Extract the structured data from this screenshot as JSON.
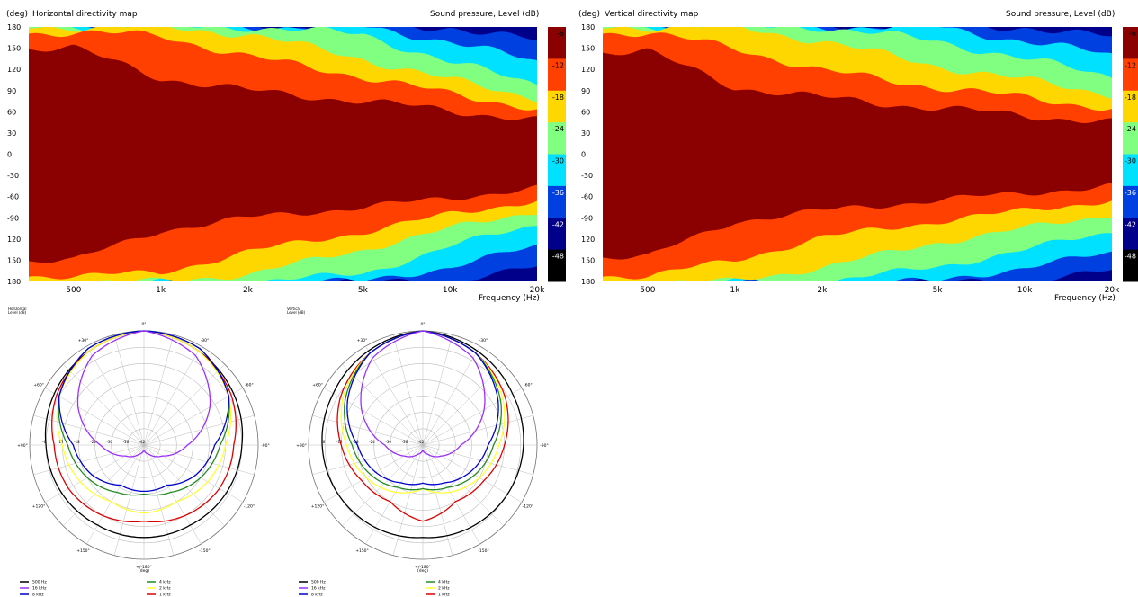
{
  "colors": {
    "levels": [
      "#8b0000",
      "#ff4000",
      "#ffd700",
      "#80ff80",
      "#00e0ff",
      "#0040e0",
      "#00008b",
      "#000000"
    ],
    "polar_series": [
      "#000000",
      "#9b30ff",
      "#0000cc",
      "#228b22",
      "#ffff33",
      "#dd0000"
    ],
    "grid": "#bdbdbd"
  },
  "maps": [
    {
      "ylabel": "(deg)",
      "title": "Horizontal directivity map",
      "cbar_label": "Sound pressure, Level  (dB)",
      "xlabel": "Frequency  (Hz)",
      "xticks": [
        "500",
        "1k",
        "2k",
        "5k",
        "10k",
        "20k"
      ],
      "yticks": [
        "180",
        "150",
        "120",
        "90",
        "60",
        "30",
        "0",
        "-30",
        "-60",
        "-90",
        "120",
        "150",
        "180"
      ],
      "cbar_ticks": [
        "-6",
        "-12",
        "-18",
        "-24",
        "-30",
        "-36",
        "-42",
        "-48"
      ],
      "dev_top": [
        [
          0,
          0
        ],
        [
          6,
          -2
        ],
        [
          18,
          -1
        ],
        [
          40,
          2
        ],
        [
          80,
          4
        ],
        [
          120,
          5
        ],
        [
          170,
          6
        ],
        [
          220,
          8
        ],
        [
          260,
          7
        ],
        [
          300,
          9
        ],
        [
          350,
          12
        ],
        [
          400,
          11
        ],
        [
          440,
          14
        ],
        [
          480,
          16
        ],
        [
          520,
          18
        ],
        [
          565,
          20
        ]
      ],
      "dev_bot": [
        [
          0,
          0
        ],
        [
          6,
          2
        ],
        [
          18,
          3
        ],
        [
          40,
          4
        ],
        [
          80,
          5
        ],
        [
          120,
          6
        ],
        [
          170,
          7
        ],
        [
          220,
          8
        ],
        [
          260,
          9
        ],
        [
          300,
          10
        ],
        [
          350,
          11
        ],
        [
          400,
          12
        ],
        [
          440,
          14
        ],
        [
          480,
          16
        ],
        [
          520,
          18
        ],
        [
          565,
          19
        ]
      ]
    },
    {
      "ylabel": "(deg)",
      "title": "Vertical directivity map",
      "cbar_label": "Sound pressure, Level  (dB)",
      "xlabel": "Frequency  (Hz)",
      "xticks": [
        "500",
        "1k",
        "2k",
        "5k",
        "10k",
        "20k"
      ],
      "yticks": [
        "180",
        "150",
        "120",
        "90",
        "60",
        "30",
        "0",
        "-30",
        "-60",
        "-90",
        "120",
        "150",
        "180"
      ],
      "cbar_ticks": [
        "-6",
        "-12",
        "-18",
        "-24",
        "-30",
        "-36",
        "-42",
        "-48"
      ],
      "dev_top": [
        [
          0,
          0
        ],
        [
          6,
          -1
        ],
        [
          18,
          0
        ],
        [
          40,
          3
        ],
        [
          80,
          6
        ],
        [
          120,
          8
        ],
        [
          150,
          2
        ],
        [
          190,
          9
        ],
        [
          240,
          12
        ],
        [
          290,
          14
        ],
        [
          340,
          16
        ],
        [
          390,
          15
        ],
        [
          440,
          17
        ],
        [
          500,
          19
        ],
        [
          565,
          21
        ]
      ],
      "dev_bot": [
        [
          0,
          0
        ],
        [
          6,
          1
        ],
        [
          18,
          2
        ],
        [
          40,
          4
        ],
        [
          80,
          6
        ],
        [
          120,
          8
        ],
        [
          170,
          9
        ],
        [
          220,
          10
        ],
        [
          270,
          12
        ],
        [
          320,
          13
        ],
        [
          370,
          14
        ],
        [
          420,
          16
        ],
        [
          470,
          17
        ],
        [
          520,
          18
        ],
        [
          565,
          20
        ]
      ]
    }
  ],
  "polars": [
    {
      "header_line1": "Horizontal",
      "header_line2": "Level  (dB)",
      "angle_labels": [
        "0°",
        "-30°",
        "-60°",
        "-90°",
        "-120°",
        "-150°",
        "+/-180°",
        "+150°",
        "+120°",
        "+90°",
        "+60°",
        "+30°"
      ],
      "deg_label": "(deg)",
      "ring_labels": [
        "-6",
        "-12",
        "-18",
        "-24",
        "-30",
        "-36",
        "-42"
      ],
      "legend": [
        "500 Hz",
        "16 kHz",
        "8 kHz",
        "4 kHz",
        "2 kHz",
        "1 kHz"
      ]
    },
    {
      "header_line1": "Vertical",
      "header_line2": "Level  (dB)",
      "angle_labels": [
        "0°",
        "-30°",
        "-60°",
        "-90°",
        "-120°",
        "-150°",
        "+/-180°",
        "+150°",
        "+120°",
        "+90°",
        "+60°",
        "+30°"
      ],
      "deg_label": "(deg)",
      "ring_labels": [
        "-6",
        "-12",
        "-18",
        "-24",
        "-30",
        "-36",
        "-42"
      ],
      "legend": [
        "500 Hz",
        "16 kHz",
        "8 kHz",
        "4 kHz",
        "2 kHz",
        "1 kHz"
      ]
    }
  ],
  "chart_data": [
    {
      "type": "heatmap",
      "title": "Horizontal directivity map",
      "xlabel": "Frequency  (Hz)",
      "ylabel": "(deg)",
      "colorbar_label": "Sound pressure, Level  (dB)",
      "x_scale": "log",
      "xlim": [
        350,
        20000
      ],
      "ylim": [
        -180,
        180
      ],
      "levels_db": [
        -6,
        -12,
        -18,
        -24,
        -30,
        -36,
        -42,
        -48
      ],
      "contour_angle_deg": {
        "frequencies_hz": [
          500,
          1000,
          2000,
          5000,
          10000,
          20000
        ],
        "level_-6": [
          78,
          65,
          62,
          58,
          50,
          40
        ],
        "level_-12": [
          150,
          108,
          90,
          75,
          62,
          48
        ],
        "level_-18": [
          172,
          168,
          138,
          110,
          85,
          65
        ],
        "level_-24": [
          180,
          180,
          170,
          135,
          105,
          80
        ],
        "level_-30": [
          180,
          180,
          180,
          170,
          130,
          100
        ],
        "level_-36": [
          180,
          180,
          180,
          180,
          160,
          130
        ],
        "level_-42": [
          180,
          180,
          180,
          180,
          180,
          160
        ]
      }
    },
    {
      "type": "heatmap",
      "title": "Vertical directivity map",
      "xlabel": "Frequency  (Hz)",
      "ylabel": "(deg)",
      "colorbar_label": "Sound pressure, Level  (dB)",
      "x_scale": "log",
      "xlim": [
        350,
        20000
      ],
      "ylim": [
        -180,
        180
      ],
      "levels_db": [
        -6,
        -12,
        -18,
        -24,
        -30,
        -36,
        -42,
        -48
      ],
      "contour_angle_deg": {
        "frequencies_hz": [
          500,
          1000,
          2000,
          5000,
          10000,
          20000
        ],
        "level_-6": [
          78,
          60,
          50,
          40,
          35,
          30
        ],
        "level_-12": [
          145,
          95,
          80,
          65,
          55,
          45
        ],
        "level_-18": [
          172,
          150,
          118,
          95,
          80,
          65
        ],
        "level_-24": [
          180,
          180,
          160,
          125,
          105,
          85
        ],
        "level_-30": [
          180,
          180,
          180,
          160,
          135,
          110
        ],
        "level_-36": [
          180,
          180,
          180,
          180,
          160,
          140
        ],
        "level_-42": [
          180,
          180,
          180,
          180,
          180,
          165
        ]
      }
    },
    {
      "type": "polar",
      "title": "Horizontal",
      "r_label": "Level  (dB)",
      "r_range_db": [
        -42,
        0
      ],
      "angles_deg": [
        0,
        30,
        60,
        90,
        120,
        150,
        180
      ],
      "series": [
        {
          "name": "500 Hz",
          "values": [
            0,
            -2,
            -4,
            -6,
            -7,
            -8,
            -8
          ]
        },
        {
          "name": "1 kHz",
          "values": [
            0,
            -2,
            -5,
            -9,
            -10,
            -12,
            -14
          ]
        },
        {
          "name": "2 kHz",
          "values": [
            0,
            -2,
            -6,
            -12,
            -15,
            -18,
            -17
          ]
        },
        {
          "name": "4 kHz",
          "values": [
            0,
            -1,
            -6,
            -14,
            -18,
            -22,
            -24
          ]
        },
        {
          "name": "8 kHz",
          "values": [
            0,
            -1,
            -6,
            -16,
            -20,
            -25,
            -25
          ]
        },
        {
          "name": "16 kHz",
          "values": [
            0,
            -4,
            -14,
            -26,
            -34,
            -38,
            -40
          ]
        }
      ]
    },
    {
      "type": "polar",
      "title": "Vertical",
      "r_label": "Level  (dB)",
      "r_range_db": [
        -42,
        0
      ],
      "angles_deg": [
        0,
        30,
        60,
        90,
        120,
        150,
        180
      ],
      "series": [
        {
          "name": "500 Hz",
          "values": [
            0,
            -2,
            -4,
            -5,
            -6,
            -7,
            -8
          ]
        },
        {
          "name": "1 kHz",
          "values": [
            0,
            -3,
            -7,
            -12,
            -16,
            -18,
            -14
          ]
        },
        {
          "name": "2 kHz",
          "values": [
            0,
            -3,
            -8,
            -14,
            -18,
            -22,
            -26
          ]
        },
        {
          "name": "4 kHz",
          "values": [
            0,
            -3,
            -9,
            -16,
            -20,
            -24,
            -26
          ]
        },
        {
          "name": "8 kHz",
          "values": [
            0,
            -3,
            -10,
            -18,
            -22,
            -26,
            -28
          ]
        },
        {
          "name": "16 kHz",
          "values": [
            0,
            -5,
            -16,
            -28,
            -34,
            -38,
            -40
          ]
        }
      ]
    }
  ]
}
